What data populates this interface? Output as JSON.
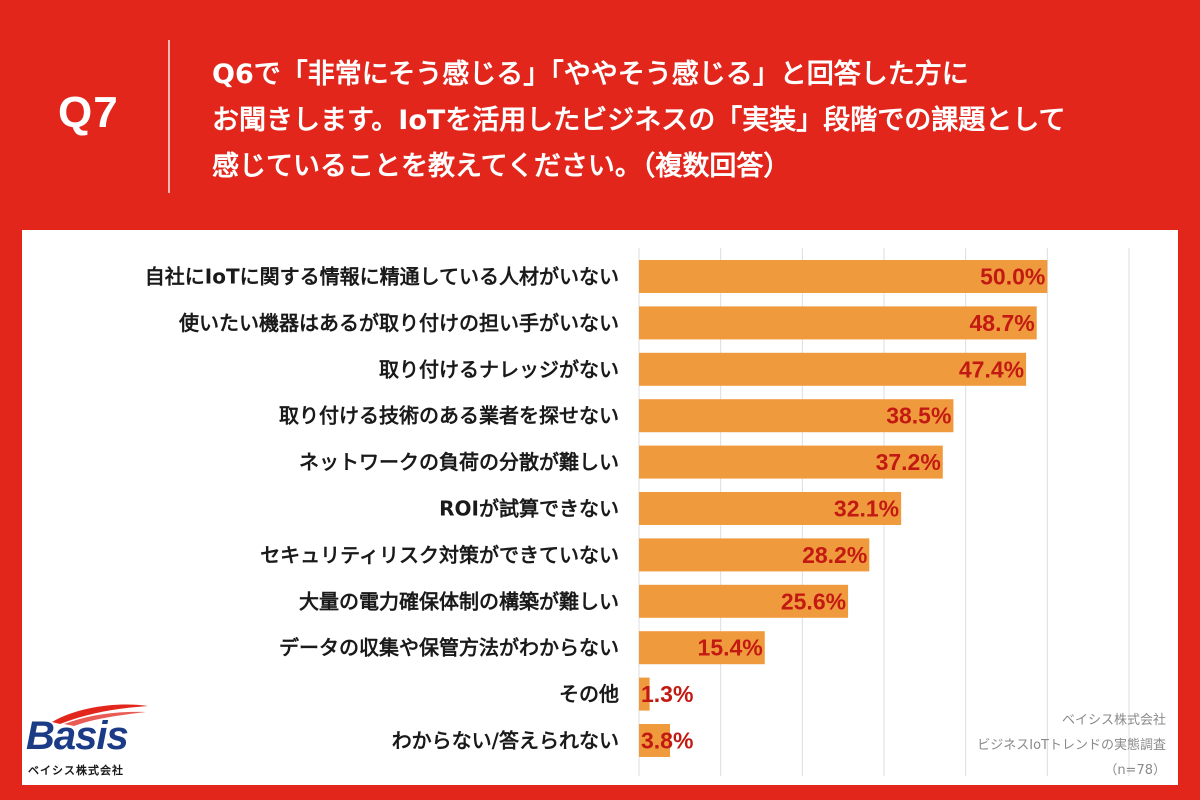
{
  "question": {
    "number": "Q7",
    "lines": [
      "Q6で「非常にそう感じる」「ややそう感じる」と回答した方に",
      "お聞きします。IoTを活用したビジネスの「実装」段階での課題として",
      "感じていることを教えてください。（複数回答）"
    ]
  },
  "chart_data": {
    "type": "bar",
    "orientation": "horizontal",
    "title": "",
    "xlabel": "",
    "ylabel": "",
    "xlim": [
      0,
      60
    ],
    "grid": true,
    "bar_color": "#f09a3e",
    "value_color": "#c21a12",
    "categories": [
      "自社にIoTに関する情報に精通している人材がいない",
      "使いたい機器はあるが取り付けの担い手がいない",
      "取り付けるナレッジがない",
      "取り付ける技術のある業者を探せない",
      "ネットワークの負荷の分散が難しい",
      "ROIが試算できない",
      "セキュリティリスク対策ができていない",
      "大量の電力確保体制の構築が難しい",
      "データの収集や保管方法がわからない",
      "その他",
      "わからない/答えられない"
    ],
    "values": [
      50.0,
      48.7,
      47.4,
      38.5,
      37.2,
      32.1,
      28.2,
      25.6,
      15.4,
      1.3,
      3.8
    ],
    "value_labels": [
      "50.0%",
      "48.7%",
      "47.4%",
      "38.5%",
      "37.2%",
      "32.1%",
      "28.2%",
      "25.6%",
      "15.4%",
      "1.3%",
      "3.8%"
    ]
  },
  "logo": {
    "name": "Basis",
    "subtitle": "ベイシス株式会社"
  },
  "source": {
    "company": "ベイシス株式会社",
    "survey": "ビジネスIoTトレンドの実態調査",
    "sample": "（n=78）"
  }
}
